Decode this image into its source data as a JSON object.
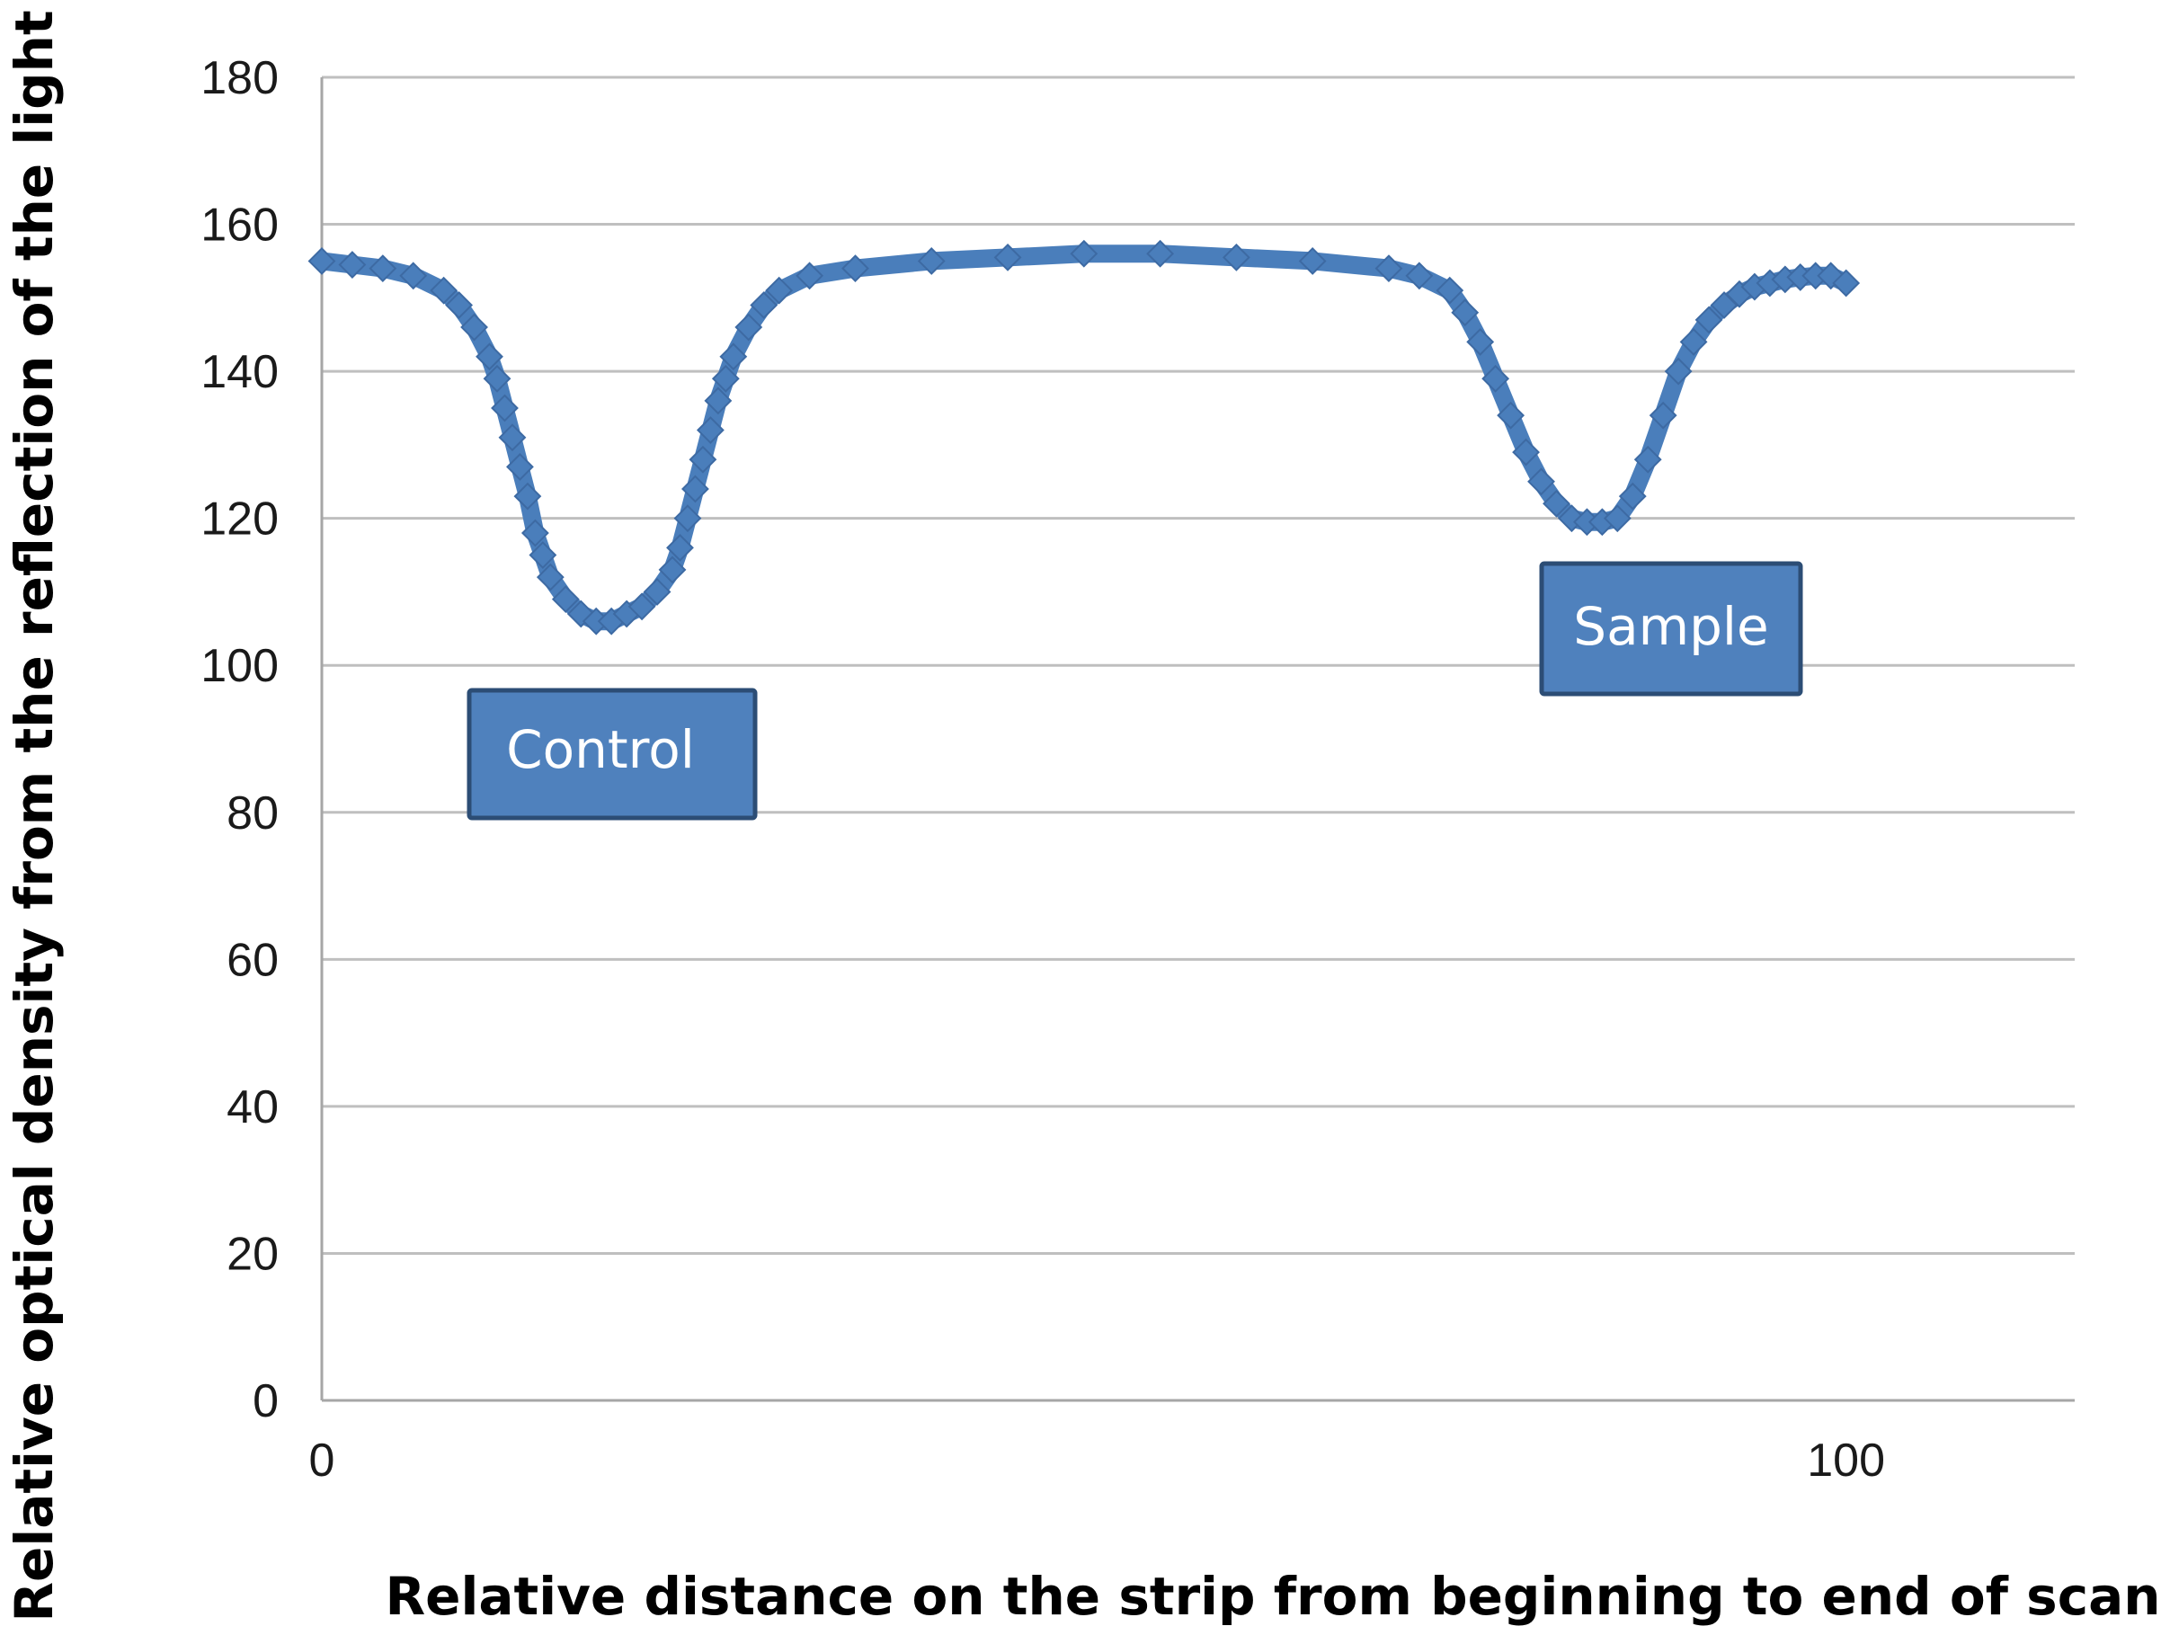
{
  "chart_data": {
    "type": "scatter",
    "marker": "diamond",
    "xlabel": "Relative distance on the strip from beginning to end of scanning",
    "ylabel": "Relative optical density from the reflection of the light",
    "xlim": [
      0,
      115
    ],
    "ylim": [
      0,
      180
    ],
    "x_ticks": [
      0,
      100
    ],
    "y_ticks": [
      0,
      20,
      40,
      60,
      80,
      100,
      120,
      140,
      160,
      180
    ],
    "grid": "horizontal",
    "legend": "none",
    "colors": {
      "series": "#4a7ebb",
      "series_edge": "#3d6aa3",
      "annotation_fill": "#4f81bd",
      "annotation_border": "#2c4d75",
      "grid": "#bfbfbf",
      "axis": "#a6a6a6"
    },
    "series": [
      {
        "x": [
          0,
          2,
          4,
          6,
          8,
          9,
          10,
          11,
          11.5,
          12,
          12.5,
          13,
          13.5,
          14,
          14.5,
          15,
          16,
          17,
          18,
          19,
          20,
          21,
          22,
          23,
          23.5,
          24,
          24.5,
          25,
          25.5,
          26,
          26.5,
          27,
          28,
          29,
          30,
          32,
          35,
          40,
          45,
          50,
          55,
          60,
          65,
          70,
          72,
          74,
          75,
          76,
          77,
          78,
          79,
          80,
          81,
          82,
          83,
          84,
          85,
          86,
          87,
          88,
          89,
          90,
          91,
          92,
          93,
          94,
          95,
          96,
          97,
          98,
          99,
          100
        ],
        "y": [
          155,
          154.5,
          154,
          153,
          151,
          149,
          146,
          142,
          139,
          135,
          131,
          127,
          123,
          118,
          115,
          112,
          109,
          107,
          106,
          106,
          107,
          108,
          110,
          113,
          116,
          120,
          124,
          128,
          132,
          136,
          139,
          142,
          146,
          149,
          151,
          153,
          154,
          155,
          155.5,
          156,
          156,
          155.5,
          155,
          154,
          153,
          151,
          148,
          144,
          139,
          134,
          129,
          125,
          122,
          120,
          119.5,
          119.5,
          120,
          123,
          128,
          134,
          140,
          144,
          147,
          149,
          150.5,
          151.5,
          152,
          152.5,
          152.8,
          153,
          153,
          152
        ]
      }
    ],
    "annotations": [
      "Control",
      "Sample"
    ]
  }
}
